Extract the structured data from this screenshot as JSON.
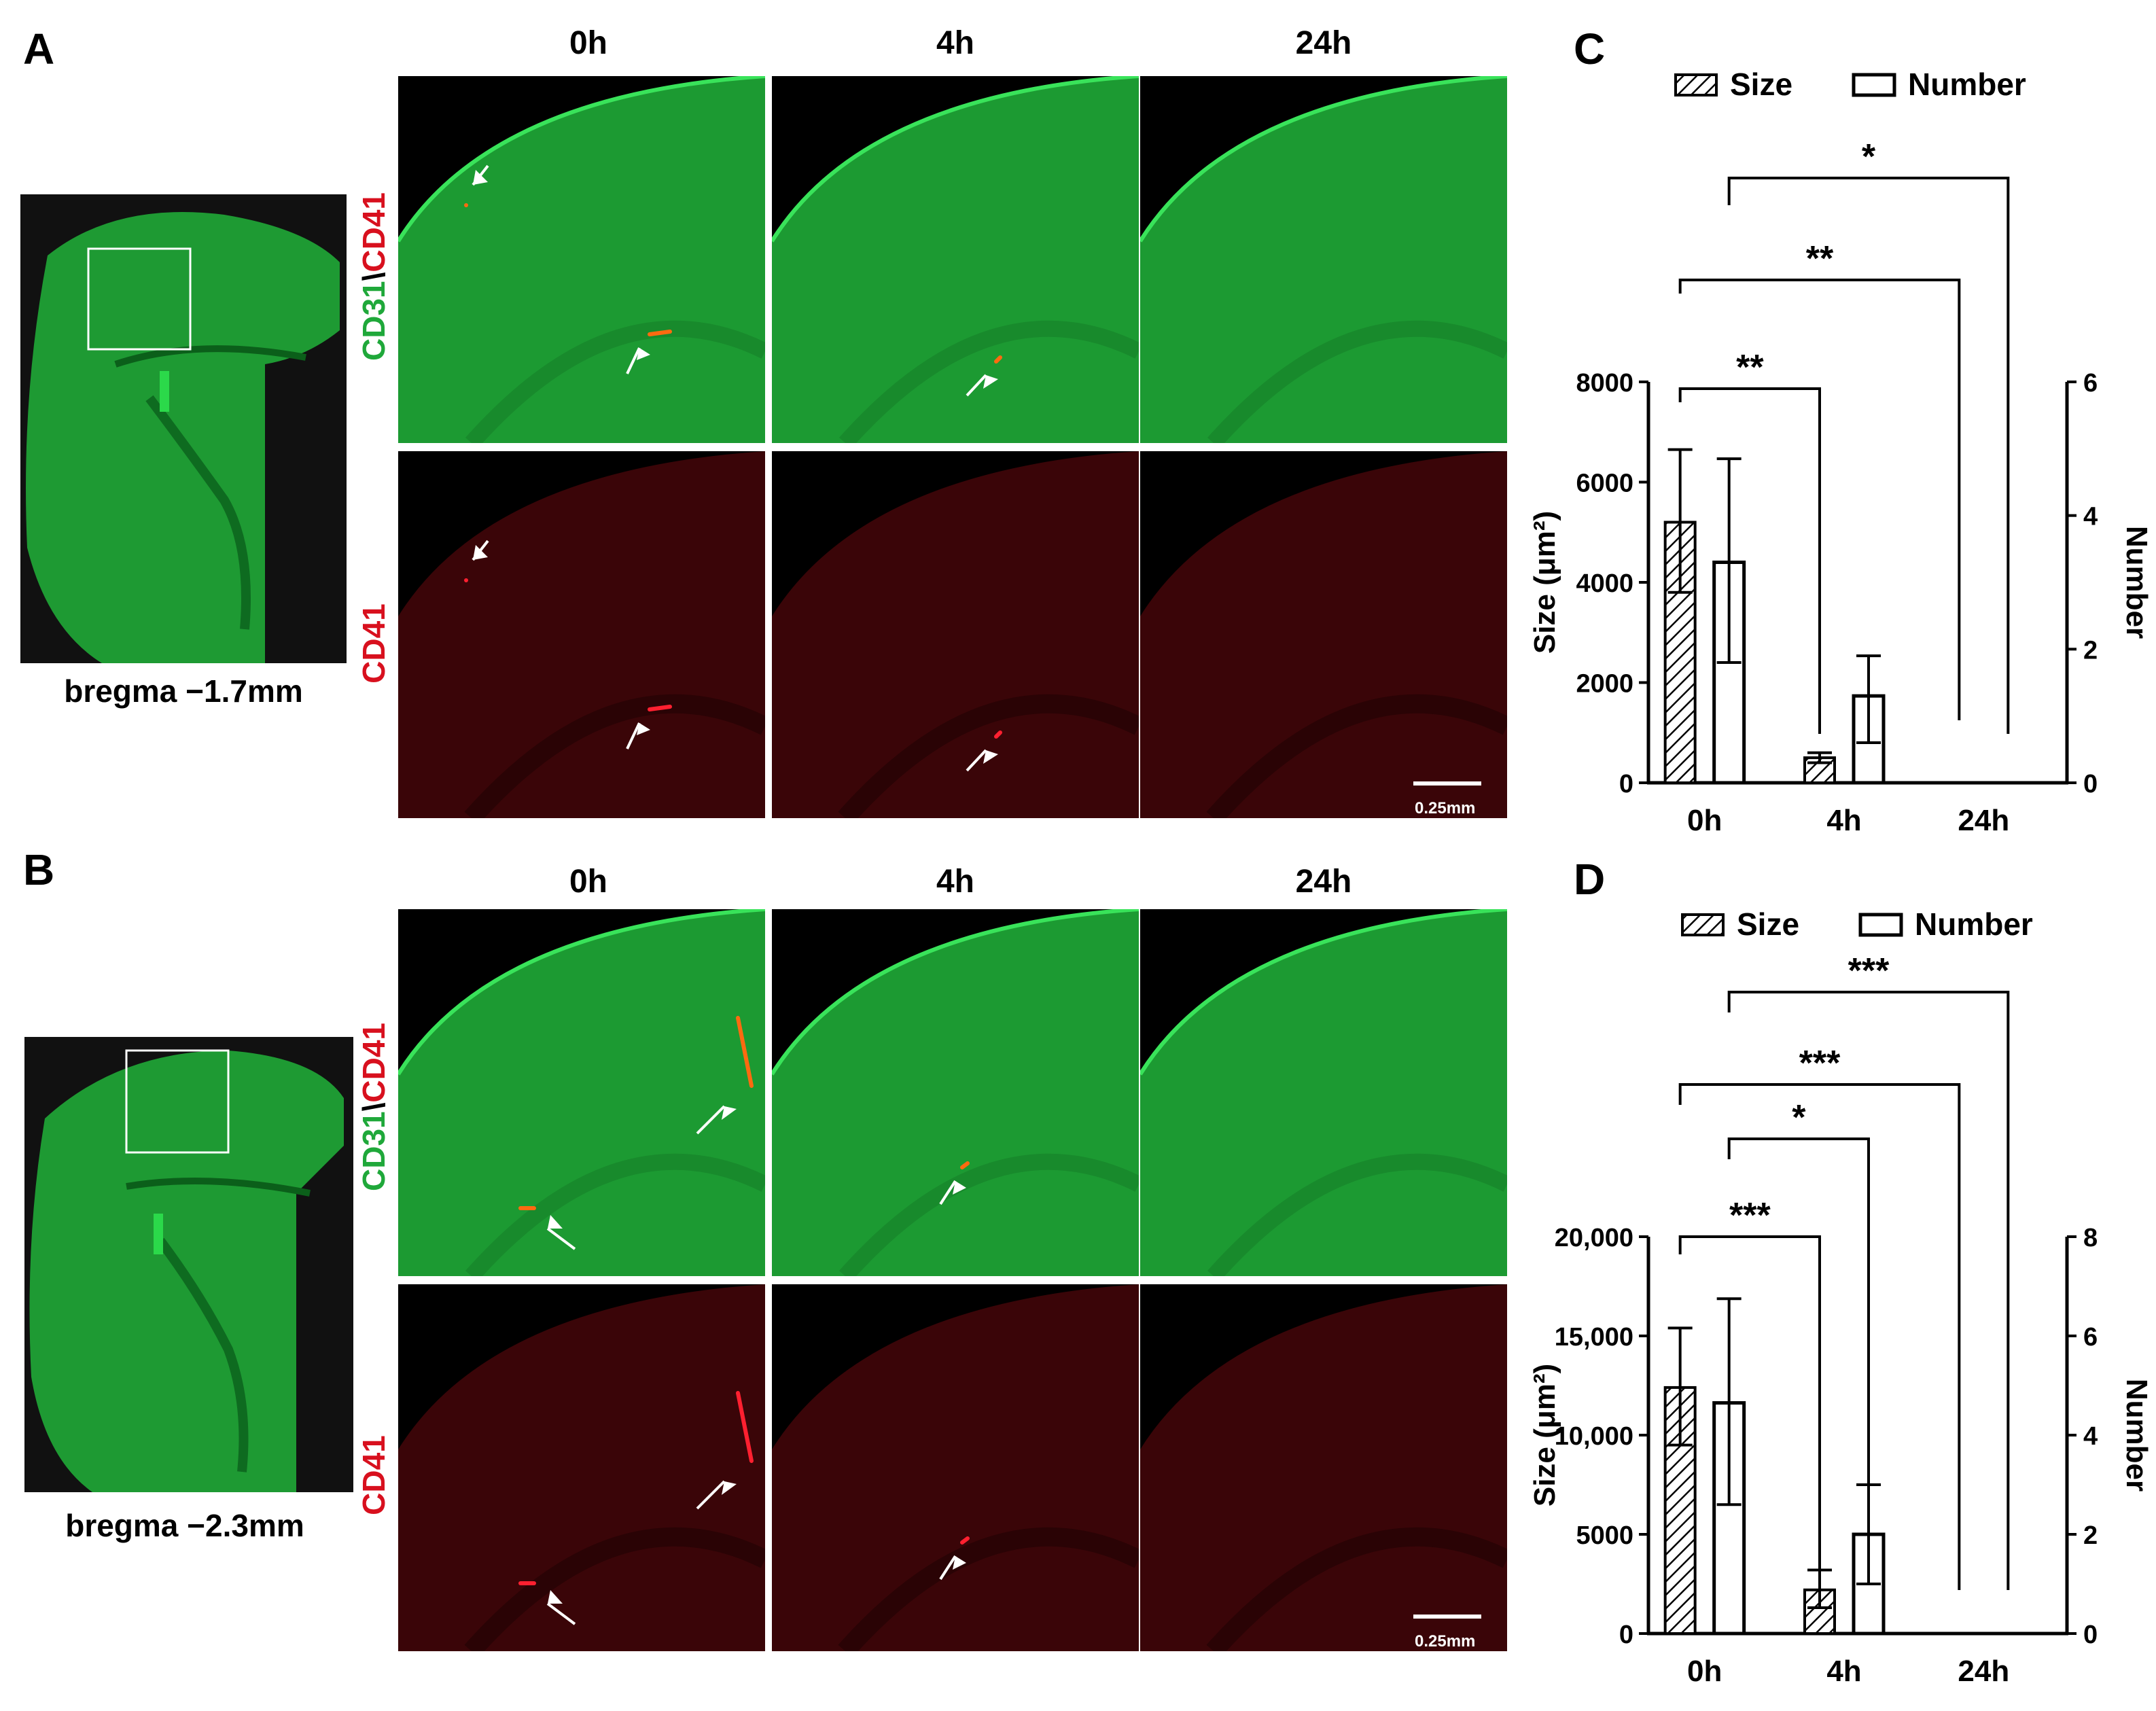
{
  "panels": {
    "A": {
      "letter": "A",
      "bregma": "bregma −1.7mm"
    },
    "B": {
      "letter": "B",
      "bregma": "bregma −2.3mm"
    },
    "C": {
      "letter": "C"
    },
    "D": {
      "letter": "D"
    }
  },
  "columns": [
    "0h",
    "4h",
    "24h"
  ],
  "row_labels": {
    "merge_part1": "CD31",
    "merge_sep": "\\",
    "merge_part2": "CD41",
    "single": "CD41"
  },
  "scale_bar": "0.25mm",
  "colors": {
    "green": "#1fa83a",
    "red": "#d8101e",
    "marker_red": "#e8141e",
    "dark": "#000000"
  },
  "chart_data": [
    {
      "type": "bar",
      "panel": "C",
      "categories": [
        "0h",
        "4h",
        "24h"
      ],
      "legend": [
        "Size",
        "Number"
      ],
      "ylabel": "Size (μm²)",
      "y2label": "Number",
      "ylim": [
        0,
        8000
      ],
      "y2lim": [
        0,
        6
      ],
      "yticks": [
        "0",
        "2000",
        "4000",
        "6000",
        "8000"
      ],
      "y2ticks": [
        "0",
        "2",
        "4",
        "6"
      ],
      "series": [
        {
          "name": "Size",
          "axis": "left",
          "pattern": "hatch",
          "values": [
            5200,
            500,
            0
          ],
          "err_low": [
            3800,
            400,
            0
          ],
          "err_high": [
            6650,
            600,
            0
          ]
        },
        {
          "name": "Number",
          "axis": "right",
          "pattern": "open",
          "values": [
            3.3,
            1.3,
            0
          ],
          "err_low": [
            1.8,
            0.6,
            0
          ],
          "err_high": [
            4.85,
            1.9,
            0
          ]
        }
      ],
      "significance": [
        {
          "label": "**",
          "from": "0h-size",
          "to": "4h-size"
        },
        {
          "label": "**",
          "from": "0h-size",
          "to": "24h-size"
        },
        {
          "label": "*",
          "from": "0h-number",
          "to": "24h-number"
        }
      ]
    },
    {
      "type": "bar",
      "panel": "D",
      "categories": [
        "0h",
        "4h",
        "24h"
      ],
      "legend": [
        "Size",
        "Number"
      ],
      "ylabel": "Size (μm²)",
      "y2label": "Number",
      "ylim": [
        0,
        20000
      ],
      "y2lim": [
        0,
        8
      ],
      "yticks": [
        "0",
        "5000",
        "10,000",
        "15,000",
        "20,000"
      ],
      "y2ticks": [
        "0",
        "2",
        "4",
        "6",
        "8"
      ],
      "series": [
        {
          "name": "Size",
          "axis": "left",
          "pattern": "hatch",
          "values": [
            12400,
            2200,
            0
          ],
          "err_low": [
            9500,
            1300,
            0
          ],
          "err_high": [
            15400,
            3200,
            0
          ]
        },
        {
          "name": "Number",
          "axis": "right",
          "pattern": "open",
          "values": [
            4.65,
            2.0,
            0
          ],
          "err_low": [
            2.6,
            1.0,
            0
          ],
          "err_high": [
            6.75,
            3.0,
            0
          ]
        }
      ],
      "significance": [
        {
          "label": "***",
          "from": "0h-size",
          "to": "4h-size"
        },
        {
          "label": "*",
          "from": "0h-number",
          "to": "4h-number"
        },
        {
          "label": "***",
          "from": "0h-size",
          "to": "24h-size"
        },
        {
          "label": "***",
          "from": "0h-number",
          "to": "24h-number"
        }
      ]
    }
  ]
}
